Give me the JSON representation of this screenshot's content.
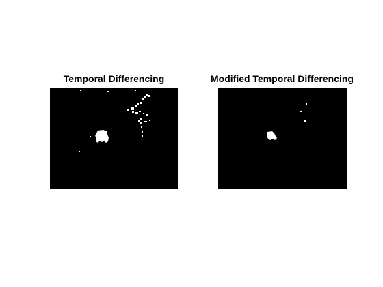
{
  "figure": {
    "background": "#ffffff",
    "image_background": "#000000",
    "foreground": "#ffffff"
  },
  "panels": [
    {
      "title": "Temporal Differencing"
    },
    {
      "title": "Modified Temporal Differencing"
    }
  ]
}
